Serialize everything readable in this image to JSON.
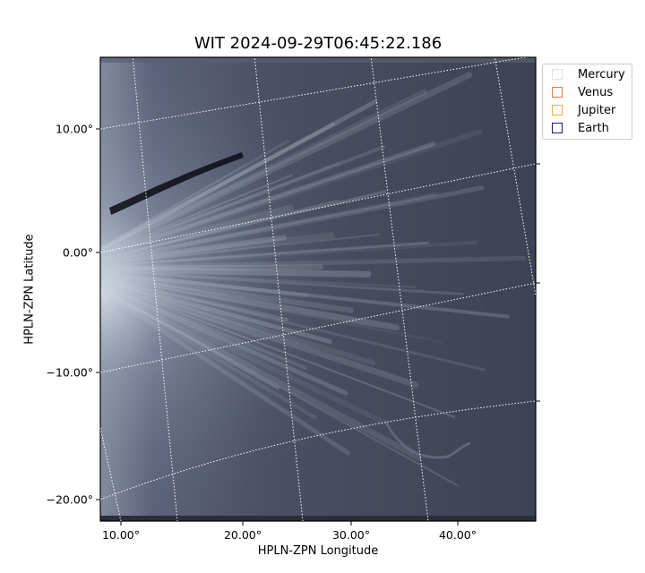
{
  "title": "WIT 2024-09-29T06:45:22.186",
  "axes": {
    "xlabel": "HPLN-ZPN Longitude",
    "ylabel": "HPLN-ZPN Latitude",
    "xticks": [
      "10.00°",
      "20.00°",
      "30.00°",
      "40.00°"
    ],
    "yticks": [
      "10.00°",
      "0.00°",
      "−10.00°",
      "−20.00°"
    ]
  },
  "legend": {
    "items": [
      {
        "label": "Mercury",
        "color": "#e0e0e0"
      },
      {
        "label": "Venus",
        "color": "#e07a3a"
      },
      {
        "label": "Jupiter",
        "color": "#e8b23a"
      },
      {
        "label": "Earth",
        "color": "#1a1a6e"
      }
    ]
  },
  "image": {
    "colormap": "bone",
    "background_color": "#3d4254"
  }
}
